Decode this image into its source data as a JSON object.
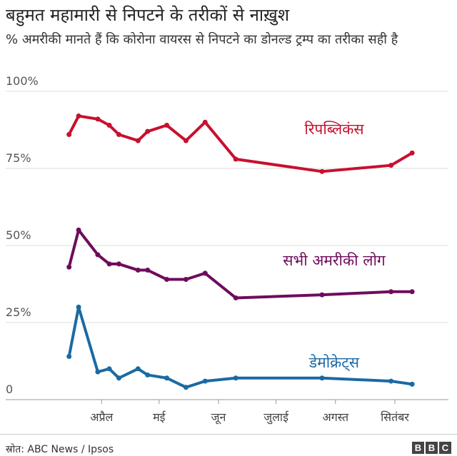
{
  "title": "बहुमत महामारी से निपटने के तरीकों से नाख़ुश",
  "subtitle": "% अमरीकी मानते हैं कि कोरोना वायरस से निपटने का डोनल्ड ट्रम्प का तरीका सही है",
  "source": "स्रोत: ABC News / Ipsos",
  "logo": [
    "B",
    "B",
    "C"
  ],
  "chart_data": {
    "type": "line",
    "y_ticks": [
      "100%",
      "75%",
      "50%",
      "25%",
      "0"
    ],
    "y_tick_values": [
      100,
      75,
      50,
      25,
      0
    ],
    "ylim": [
      0,
      100
    ],
    "x_tick_labels": [
      "अप्रैल",
      "मई",
      "जून",
      "जुलाई",
      "अगस्त",
      "सितंबर"
    ],
    "x_tick_dates": [
      "2020-04-01",
      "2020-05-01",
      "2020-06-01",
      "2020-07-01",
      "2020-08-01",
      "2020-09-01"
    ],
    "xlim": [
      "2020-03-14",
      "2020-09-20"
    ],
    "grid": true,
    "series": [
      {
        "name": "रिपब्लिकंस",
        "color": "#c8102e",
        "points": [
          [
            "2020-03-15",
            86
          ],
          [
            "2020-03-20",
            92
          ],
          [
            "2020-03-30",
            91
          ],
          [
            "2020-04-05",
            89
          ],
          [
            "2020-04-10",
            86
          ],
          [
            "2020-04-20",
            84
          ],
          [
            "2020-04-25",
            87
          ],
          [
            "2020-05-05",
            89
          ],
          [
            "2020-05-15",
            84
          ],
          [
            "2020-05-25",
            90
          ],
          [
            "2020-06-10",
            78
          ],
          [
            "2020-07-25",
            74
          ],
          [
            "2020-08-30",
            76
          ],
          [
            "2020-09-10",
            80
          ]
        ]
      },
      {
        "name": "सभी अमरीकी लोग",
        "color": "#6e0c5c",
        "points": [
          [
            "2020-03-15",
            43
          ],
          [
            "2020-03-20",
            55
          ],
          [
            "2020-03-30",
            47
          ],
          [
            "2020-04-05",
            44
          ],
          [
            "2020-04-10",
            44
          ],
          [
            "2020-04-20",
            42
          ],
          [
            "2020-04-25",
            42
          ],
          [
            "2020-05-05",
            39
          ],
          [
            "2020-05-15",
            39
          ],
          [
            "2020-05-25",
            41
          ],
          [
            "2020-06-10",
            33
          ],
          [
            "2020-07-25",
            34
          ],
          [
            "2020-08-30",
            35
          ],
          [
            "2020-09-10",
            35
          ]
        ]
      },
      {
        "name": "डेमोक्रेट्स",
        "color": "#1a6aa3",
        "points": [
          [
            "2020-03-15",
            14
          ],
          [
            "2020-03-20",
            30
          ],
          [
            "2020-03-30",
            9
          ],
          [
            "2020-04-05",
            10
          ],
          [
            "2020-04-10",
            7
          ],
          [
            "2020-04-20",
            10
          ],
          [
            "2020-04-25",
            8
          ],
          [
            "2020-05-05",
            7
          ],
          [
            "2020-05-15",
            4
          ],
          [
            "2020-05-25",
            6
          ],
          [
            "2020-06-10",
            7
          ],
          [
            "2020-07-25",
            7
          ],
          [
            "2020-08-30",
            6
          ],
          [
            "2020-09-10",
            5
          ]
        ]
      }
    ]
  }
}
